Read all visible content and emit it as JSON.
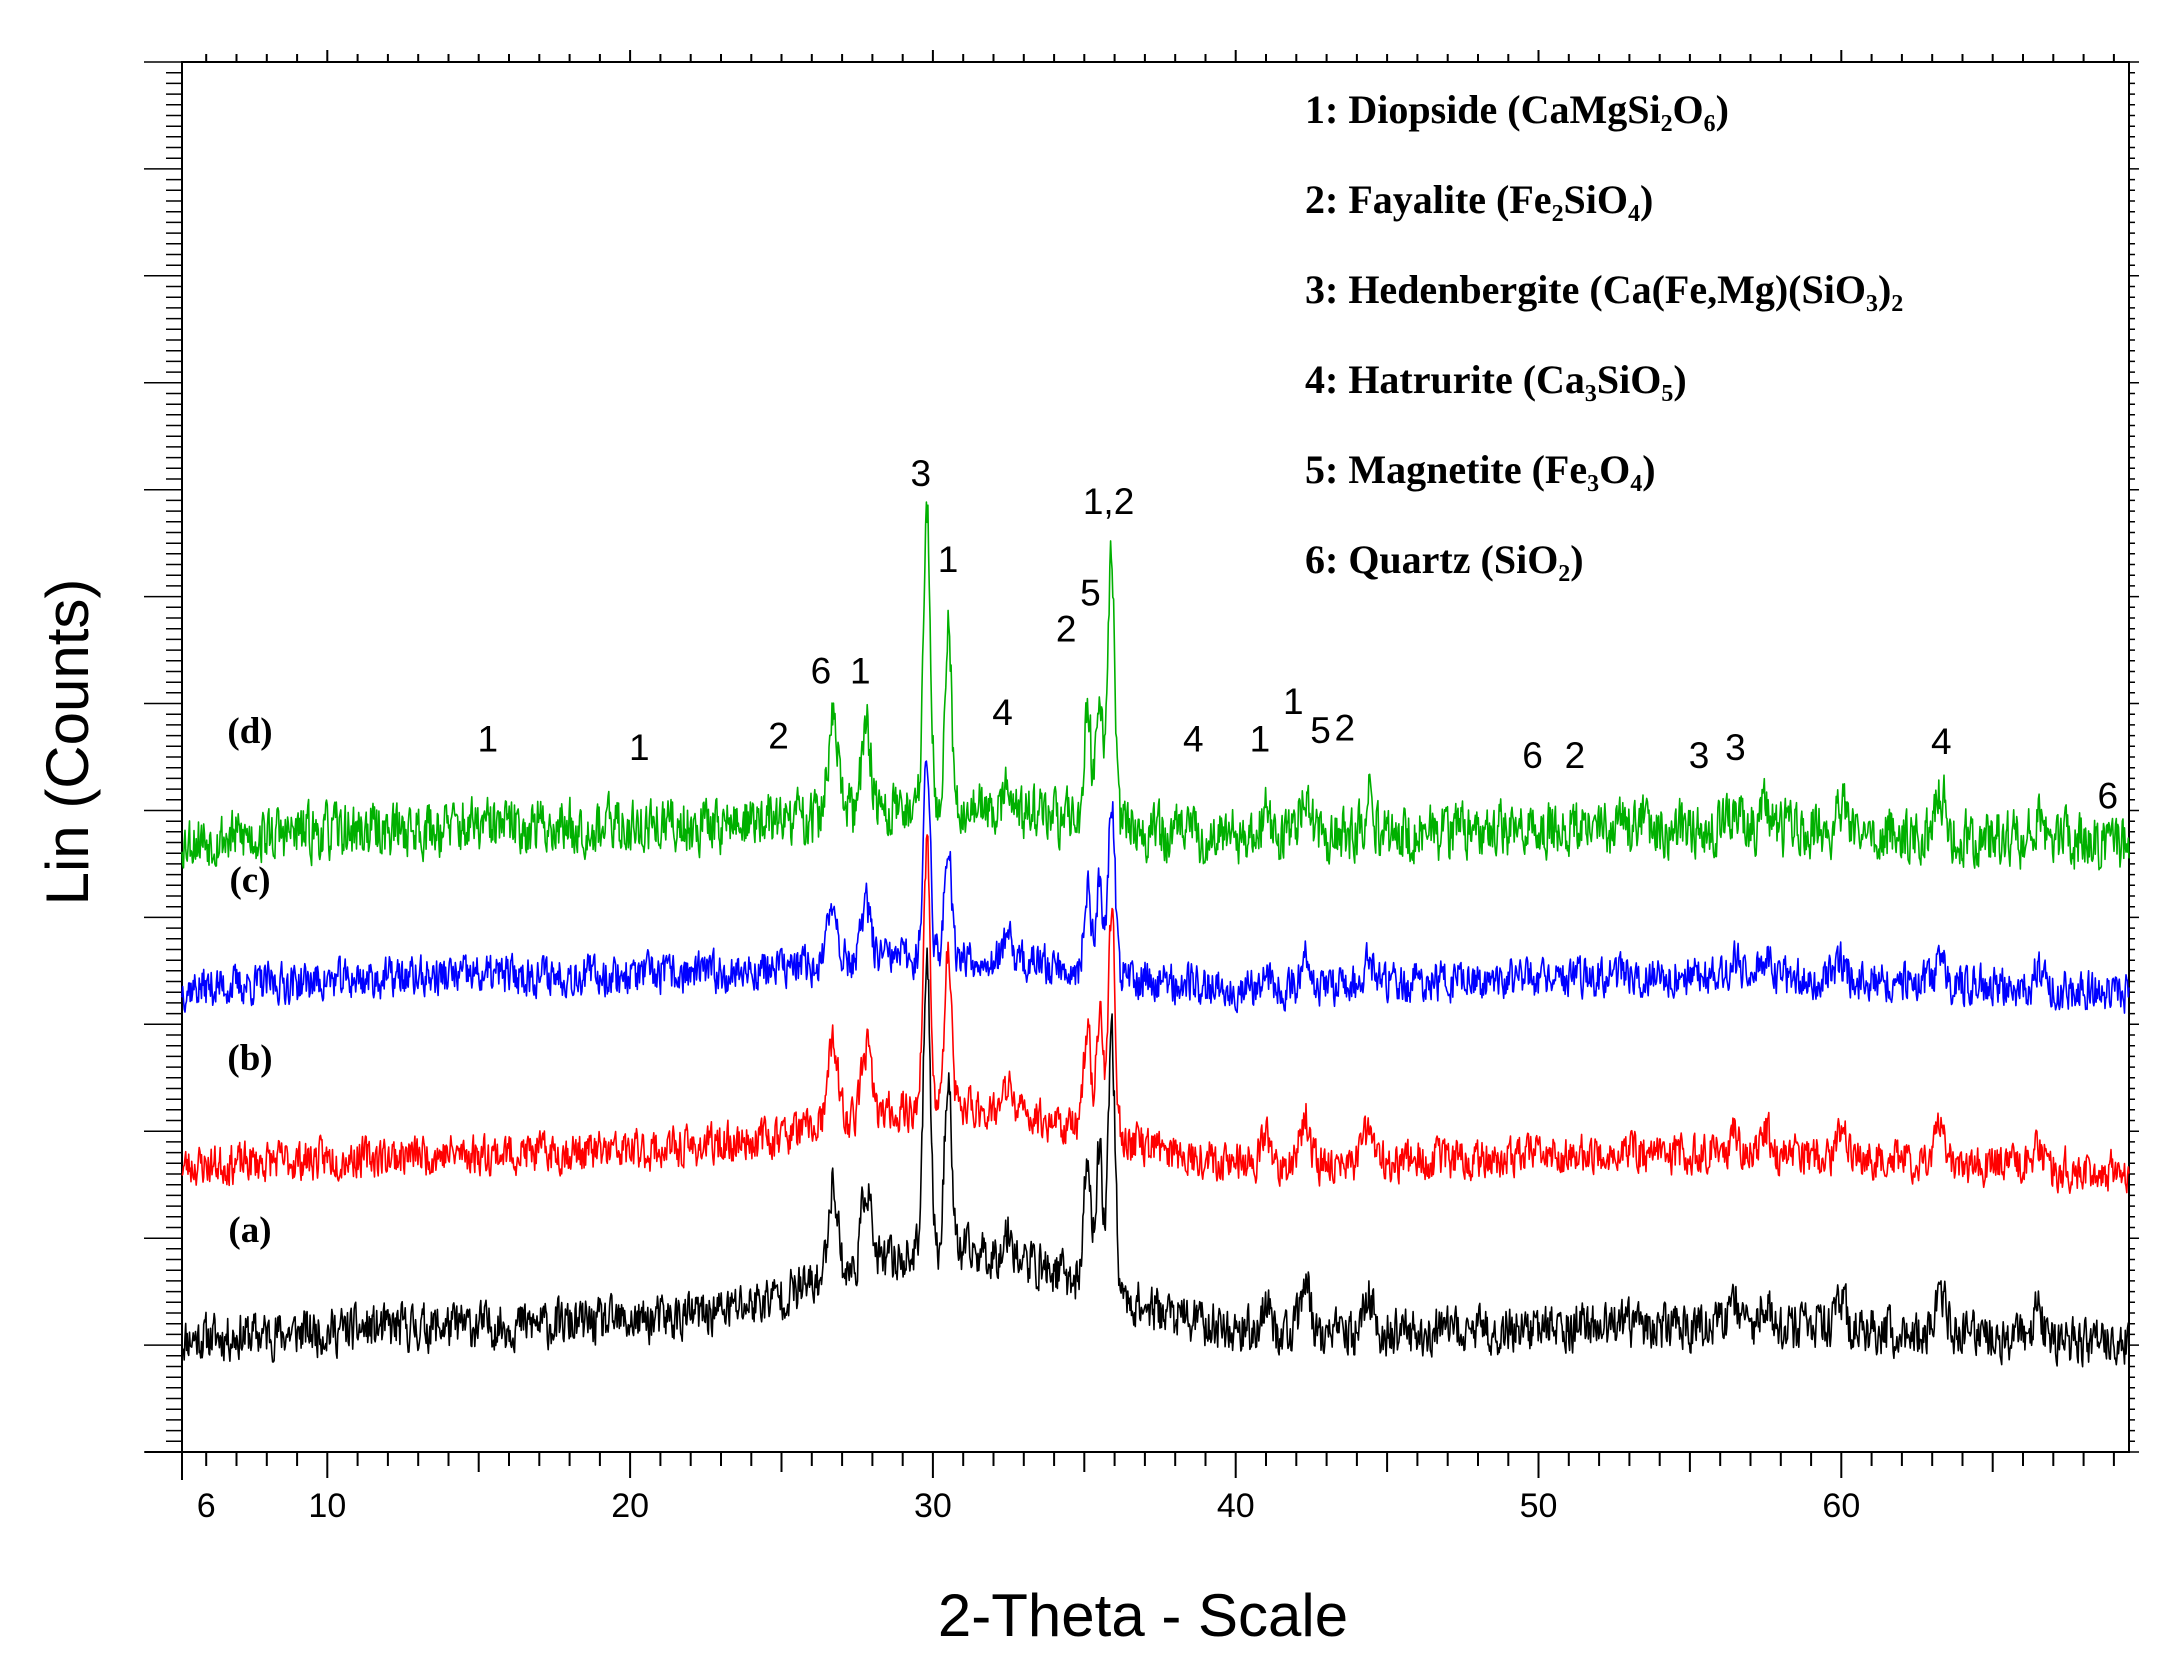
{
  "chart_data": {
    "type": "line",
    "title": "",
    "xlabel": "2-Theta - Scale",
    "ylabel": "Lin (Counts)",
    "xlim": [
      5.2,
      69.5
    ],
    "ylim": [
      0,
      100
    ],
    "x_ticks": [
      6,
      10,
      20,
      30,
      40,
      50,
      60
    ],
    "grid": false,
    "legend_position": "top-right",
    "legend": [
      {
        "num": "1",
        "name": "Diopside",
        "formula": "(CaMgSi₂O₆)"
      },
      {
        "num": "2",
        "name": "Fayalite",
        "formula": "(Fe₂SiO₄)"
      },
      {
        "num": "3",
        "name": "Hedenbergite",
        "formula": "(Ca(Fe,Mg)(SiO₃)₂"
      },
      {
        "num": "4",
        "name": "Hatrurite",
        "formula": "(Ca₃SiO₅)"
      },
      {
        "num": "5",
        "name": "Magnetite",
        "formula": "(Fe₃O₄)"
      },
      {
        "num": "6",
        "name": "Quartz",
        "formula": "(SiO₂)"
      }
    ],
    "peaks": [
      {
        "x": 26.7,
        "h": 7
      },
      {
        "x": 27.8,
        "h": 6
      },
      {
        "x": 29.8,
        "h": 22
      },
      {
        "x": 30.5,
        "h": 13
      },
      {
        "x": 32.5,
        "h": 2
      },
      {
        "x": 35.1,
        "h": 9
      },
      {
        "x": 35.5,
        "h": 10
      },
      {
        "x": 35.9,
        "h": 19
      },
      {
        "x": 41.0,
        "h": 2
      },
      {
        "x": 42.3,
        "h": 4
      },
      {
        "x": 44.4,
        "h": 3
      },
      {
        "x": 56.5,
        "h": 2
      },
      {
        "x": 57.5,
        "h": 2
      },
      {
        "x": 60.0,
        "h": 2
      },
      {
        "x": 63.3,
        "h": 3
      },
      {
        "x": 66.5,
        "h": 2
      }
    ],
    "series": [
      {
        "name": "(a)",
        "color": "#000000",
        "baseline": 8.4,
        "scale": 1.0,
        "hump": 6.5,
        "noise": 1.5,
        "seed": 11
      },
      {
        "name": "(b)",
        "color": "#ff0000",
        "baseline": 20.8,
        "scale": 0.85,
        "hump": 4.5,
        "noise": 1.3,
        "seed": 23
      },
      {
        "name": "(c)",
        "color": "#0000ff",
        "baseline": 33.6,
        "scale": 0.65,
        "hump": 2.5,
        "noise": 1.3,
        "seed": 37
      },
      {
        "name": "(d)",
        "color": "#00b000",
        "baseline": 44.3,
        "scale": 1.0,
        "hump": 2.5,
        "noise": 1.8,
        "seed": 53
      }
    ],
    "peak_labels": [
      {
        "text": "1",
        "x": 15.3,
        "y": 50.4
      },
      {
        "text": "1",
        "x": 20.3,
        "y": 49.8
      },
      {
        "text": "2",
        "x": 24.9,
        "y": 50.6
      },
      {
        "text": "6",
        "x": 26.3,
        "y": 55.3
      },
      {
        "text": "1",
        "x": 27.6,
        "y": 55.3
      },
      {
        "text": "3",
        "x": 29.6,
        "y": 69.5
      },
      {
        "text": "1",
        "x": 30.5,
        "y": 63.3
      },
      {
        "text": "4",
        "x": 32.3,
        "y": 52.3
      },
      {
        "text": "2",
        "x": 34.4,
        "y": 58.3
      },
      {
        "text": "5",
        "x": 35.2,
        "y": 60.9
      },
      {
        "text": "1,2",
        "x": 35.8,
        "y": 67.5
      },
      {
        "text": "4",
        "x": 38.6,
        "y": 50.4
      },
      {
        "text": "1",
        "x": 40.8,
        "y": 50.4
      },
      {
        "text": "1",
        "x": 41.9,
        "y": 53.1
      },
      {
        "text": "5",
        "x": 42.8,
        "y": 51.0
      },
      {
        "text": "2",
        "x": 43.6,
        "y": 51.2
      },
      {
        "text": "6",
        "x": 49.8,
        "y": 49.2
      },
      {
        "text": "2",
        "x": 51.2,
        "y": 49.2
      },
      {
        "text": "3",
        "x": 55.3,
        "y": 49.2
      },
      {
        "text": "3",
        "x": 56.5,
        "y": 49.8
      },
      {
        "text": "4",
        "x": 63.3,
        "y": 50.2
      },
      {
        "text": "6",
        "x": 68.8,
        "y": 46.3
      }
    ]
  }
}
